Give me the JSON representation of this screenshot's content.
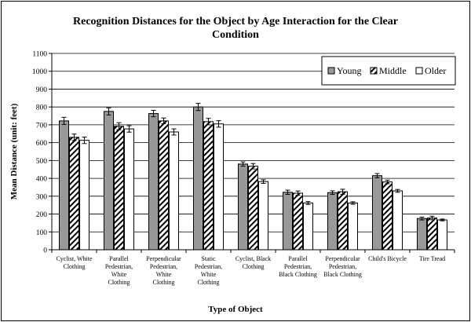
{
  "chart_data": {
    "type": "bar",
    "title_lines": [
      "Recognition Distances for the Object by Age Interaction for the Clear",
      "Condition"
    ],
    "xlabel": "Type of Object",
    "ylabel": "Mean Distance (unit: feet)",
    "ylim": [
      0,
      1100
    ],
    "ytick_step": 100,
    "grid": true,
    "legend_position": "top-right",
    "categories": [
      [
        "Cyclist, White",
        "Clothing"
      ],
      [
        "Parallel",
        "Pedestrian,",
        "White",
        "Clothing"
      ],
      [
        "Perpendicular",
        "Pedestrian,",
        "White",
        "Clothing"
      ],
      [
        "Static",
        "Pedestrian,",
        "White",
        "Clothing"
      ],
      [
        "Cyclist, Black",
        "Clothing"
      ],
      [
        "Parallel",
        "Pedestrian,",
        "Black Clothing"
      ],
      [
        "Perpendicular",
        "Pedestrian,",
        "Black Clothing"
      ],
      [
        "Child's Bicycle"
      ],
      [
        "Tire Tread"
      ]
    ],
    "series": [
      {
        "name": "Young",
        "style": "solid",
        "color": "#999999",
        "values": [
          722,
          775,
          763,
          800,
          480,
          322,
          320,
          415,
          175
        ],
        "errors": [
          20,
          20,
          18,
          20,
          12,
          12,
          10,
          12,
          8
        ]
      },
      {
        "name": "Middle",
        "style": "hatch",
        "color": "#000000",
        "values": [
          630,
          692,
          722,
          718,
          468,
          317,
          325,
          380,
          178
        ],
        "errors": [
          18,
          20,
          16,
          18,
          15,
          12,
          14,
          10,
          10
        ]
      },
      {
        "name": "Older",
        "style": "white",
        "color": "#ffffff",
        "values": [
          613,
          677,
          660,
          705,
          382,
          262,
          262,
          330,
          167
        ],
        "errors": [
          18,
          18,
          17,
          18,
          10,
          8,
          7,
          8,
          5
        ]
      }
    ]
  }
}
